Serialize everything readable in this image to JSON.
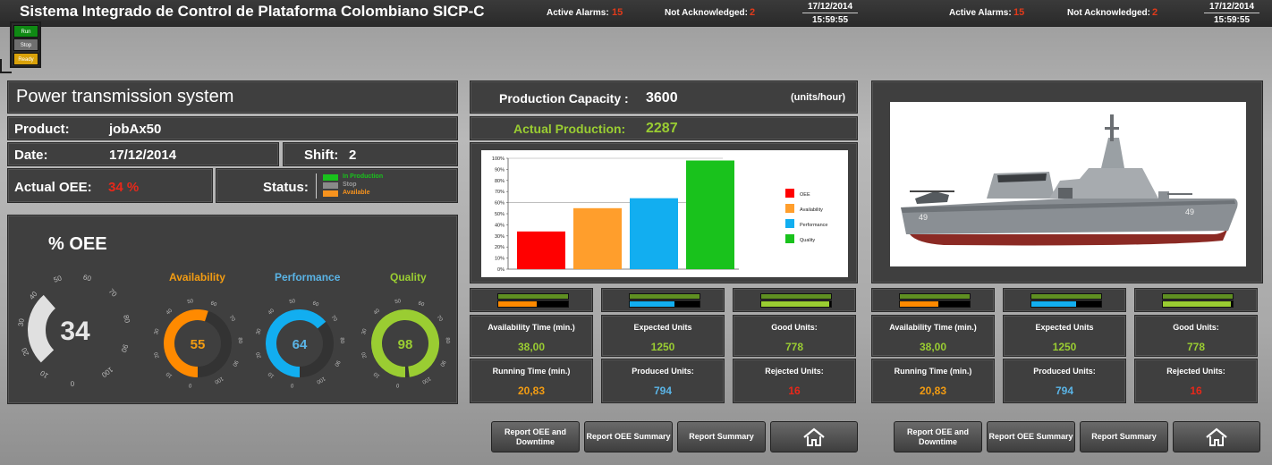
{
  "header": {
    "title": "Sistema Integrado de Control de Plataforma Colombiano SICP-C",
    "alarms_label": "Active Alarms:",
    "alarms_value": "15",
    "unack_label": "Not Acknowledged:",
    "unack_value": "2",
    "date": "17/12/2014",
    "time": "15:59:55"
  },
  "traffic_light": {
    "run": "Run",
    "stop": "Stop",
    "ready": "Ready"
  },
  "info": {
    "system_title": "Power transmission system",
    "product_label": "Product:",
    "product_value": "jobAx50",
    "date_label": "Date:",
    "date_value": "17/12/2014",
    "shift_label": "Shift:",
    "shift_value": "2",
    "oee_label": "Actual OEE:",
    "oee_value": "34 %",
    "status_label": "Status:",
    "status_legend": [
      "In Production",
      "Stop",
      "Available"
    ]
  },
  "gauges": {
    "title": "% OEE",
    "oee": {
      "value": "34",
      "ticks": [
        "0",
        "10",
        "20",
        "30",
        "40",
        "50",
        "60",
        "70",
        "80",
        "90",
        "100"
      ]
    },
    "availability": {
      "label": "Availability",
      "value": "55"
    },
    "performance": {
      "label": "Performance",
      "value": "64"
    },
    "quality": {
      "label": "Quality",
      "value": "98"
    },
    "small_ticks": [
      "0",
      "10",
      "20",
      "30",
      "40",
      "50",
      "60",
      "70",
      "80",
      "90",
      "100"
    ]
  },
  "production": {
    "capacity_label": "Production Capacity :",
    "capacity_value": "3600",
    "capacity_unit": "(units/hour)",
    "actual_label": "Actual Production:",
    "actual_value": "2287"
  },
  "colors": {
    "oee": "#ff0000",
    "availability": "#ff9e2c",
    "performance": "#12aef0",
    "quality": "#19c21c",
    "lime": "#9acd32",
    "orange_text": "#f39c12",
    "blue_text": "#5ab4e6",
    "red_text": "#e8281a"
  },
  "chart_data": {
    "type": "bar",
    "categories": [
      "OEE",
      "Availability",
      "Performance",
      "Quality"
    ],
    "values": [
      34,
      55,
      64,
      98
    ],
    "yticks": [
      "0%",
      "10%",
      "20%",
      "30%",
      "40%",
      "50%",
      "60%",
      "70%",
      "80%",
      "90%",
      "100%"
    ],
    "ylim": [
      0,
      100
    ],
    "legend": [
      "OEE",
      "Availability",
      "Performance",
      "Quality"
    ],
    "legend_position": "right"
  },
  "metrics": {
    "availability_time_label": "Availability Time (min.)",
    "availability_time_value": "38,00",
    "expected_units_label": "Expected Units",
    "expected_units_value": "1250",
    "good_units_label": "Good Units:",
    "good_units_value": "778",
    "running_time_label": "Running Time (min.)",
    "running_time_value": "20,83",
    "produced_units_label": "Produced Units:",
    "produced_units_value": "794",
    "rejected_units_label": "Rejected Units:",
    "rejected_units_value": "16",
    "indicators": {
      "availability": 0.55,
      "performance": 0.64,
      "quality": 0.98
    }
  },
  "buttons": {
    "report_oee_downtime": "Report OEE and Downtime",
    "report_oee_summary": "Report OEE Summary",
    "report_summary": "Report Summary",
    "home_icon": "home-icon"
  },
  "image": {
    "subject": "ship-image"
  }
}
